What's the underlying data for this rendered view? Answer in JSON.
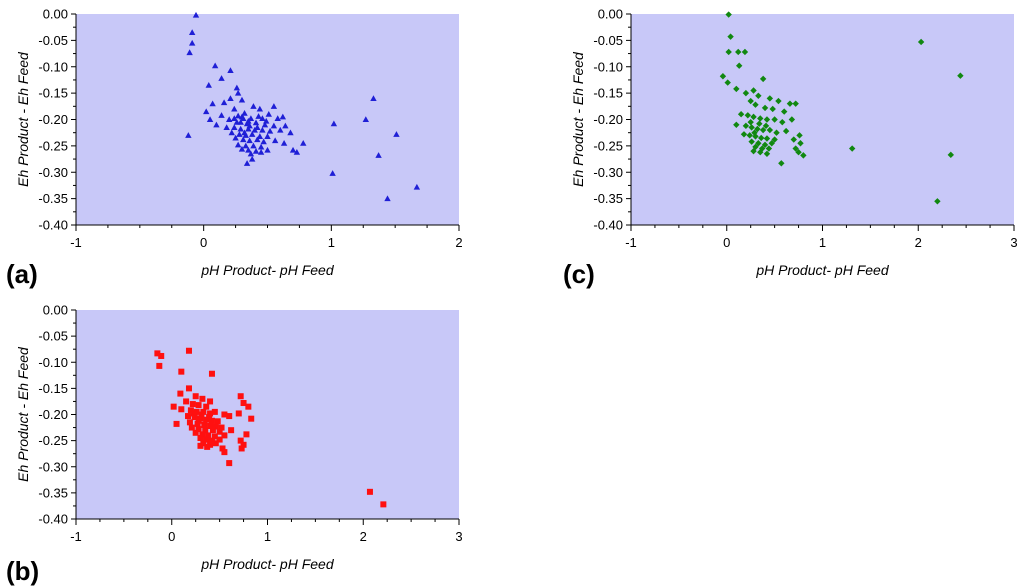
{
  "chart_data": [
    {
      "type": "scatter",
      "panel_label": "(a)",
      "xlabel": "pH Product- pH Feed",
      "ylabel": "Eh Product - Eh Feed",
      "xlim": [
        -1,
        2
      ],
      "ylim": [
        -0.4,
        0.0
      ],
      "xticks": [
        -1,
        0,
        1,
        2
      ],
      "xtick_labels": [
        "-1",
        "0",
        "1",
        "2"
      ],
      "yticks": [
        0,
        -0.05,
        -0.1,
        -0.15,
        -0.2,
        -0.25,
        -0.3,
        -0.35,
        -0.4
      ],
      "ytick_labels": [
        "0.00",
        "-0.05",
        "-0.10",
        "-0.15",
        "-0.20",
        "-0.25",
        "-0.30",
        "-0.35",
        "-0.40"
      ],
      "plot_background": "#c8c8f8",
      "marker": "triangle",
      "marker_color": "#1f1fd6",
      "series": [
        {
          "name": "Panel (a)",
          "points": [
            [
              -0.06,
              -0.002
            ],
            [
              -0.09,
              -0.035
            ],
            [
              -0.09,
              -0.055
            ],
            [
              -0.11,
              -0.073
            ],
            [
              0.09,
              -0.098
            ],
            [
              0.21,
              -0.107
            ],
            [
              0.14,
              -0.122
            ],
            [
              0.04,
              -0.135
            ],
            [
              0.26,
              -0.14
            ],
            [
              0.27,
              -0.15
            ],
            [
              0.21,
              -0.16
            ],
            [
              0.3,
              -0.163
            ],
            [
              0.16,
              -0.168
            ],
            [
              0.39,
              -0.175
            ],
            [
              0.44,
              -0.18
            ],
            [
              0.07,
              -0.17
            ],
            [
              0.24,
              -0.18
            ],
            [
              0.32,
              -0.188
            ],
            [
              0.55,
              -0.175
            ],
            [
              0.51,
              -0.19
            ],
            [
              0.02,
              -0.185
            ],
            [
              0.14,
              -0.192
            ],
            [
              0.3,
              -0.195
            ],
            [
              0.37,
              -0.198
            ],
            [
              0.43,
              -0.194
            ],
            [
              0.58,
              -0.198
            ],
            [
              0.62,
              -0.195
            ],
            [
              0.05,
              -0.2
            ],
            [
              0.2,
              -0.2
            ],
            [
              0.26,
              -0.205
            ],
            [
              0.34,
              -0.208
            ],
            [
              0.41,
              -0.206
            ],
            [
              0.48,
              -0.21
            ],
            [
              0.55,
              -0.212
            ],
            [
              0.64,
              -0.212
            ],
            [
              -0.12,
              -0.23
            ],
            [
              0.1,
              -0.21
            ],
            [
              0.18,
              -0.215
            ],
            [
              0.24,
              -0.215
            ],
            [
              0.29,
              -0.218
            ],
            [
              0.35,
              -0.218
            ],
            [
              0.4,
              -0.22
            ],
            [
              0.46,
              -0.22
            ],
            [
              0.52,
              -0.222
            ],
            [
              0.6,
              -0.22
            ],
            [
              0.68,
              -0.225
            ],
            [
              0.22,
              -0.225
            ],
            [
              0.28,
              -0.228
            ],
            [
              0.33,
              -0.23
            ],
            [
              0.38,
              -0.228
            ],
            [
              0.44,
              -0.232
            ],
            [
              0.5,
              -0.232
            ],
            [
              0.25,
              -0.235
            ],
            [
              0.31,
              -0.238
            ],
            [
              0.36,
              -0.24
            ],
            [
              0.42,
              -0.238
            ],
            [
              0.47,
              -0.242
            ],
            [
              0.56,
              -0.24
            ],
            [
              0.63,
              -0.245
            ],
            [
              0.78,
              -0.245
            ],
            [
              0.27,
              -0.248
            ],
            [
              0.33,
              -0.25
            ],
            [
              0.39,
              -0.25
            ],
            [
              0.45,
              -0.252
            ],
            [
              0.3,
              -0.256
            ],
            [
              0.35,
              -0.258
            ],
            [
              0.41,
              -0.26
            ],
            [
              0.5,
              -0.258
            ],
            [
              0.7,
              -0.258
            ],
            [
              0.73,
              -0.262
            ],
            [
              0.37,
              -0.265
            ],
            [
              0.45,
              -0.262
            ],
            [
              0.38,
              -0.275
            ],
            [
              0.34,
              -0.283
            ],
            [
              0.32,
              -0.225
            ],
            [
              0.36,
              -0.212
            ],
            [
              0.42,
              -0.215
            ],
            [
              0.29,
              -0.205
            ],
            [
              0.31,
              -0.198
            ],
            [
              0.27,
              -0.193
            ],
            [
              0.46,
              -0.198
            ],
            [
              0.49,
              -0.203
            ],
            [
              0.24,
              -0.198
            ],
            [
              0.35,
              -0.203
            ],
            [
              1.02,
              -0.208
            ],
            [
              1.27,
              -0.2
            ],
            [
              1.51,
              -0.228
            ],
            [
              1.37,
              -0.268
            ],
            [
              1.01,
              -0.302
            ],
            [
              1.44,
              -0.35
            ],
            [
              1.67,
              -0.328
            ],
            [
              1.33,
              -0.16
            ]
          ]
        }
      ]
    },
    {
      "type": "scatter",
      "panel_label": "(b)",
      "xlabel": "pH Product- pH Feed",
      "ylabel": "Eh Product - Eh Feed",
      "xlim": [
        -1,
        3
      ],
      "ylim": [
        -0.4,
        0.0
      ],
      "xticks": [
        -1,
        0,
        1,
        2,
        3
      ],
      "xtick_labels": [
        "-1",
        "0",
        "1",
        "2",
        "3"
      ],
      "yticks": [
        0,
        -0.05,
        -0.1,
        -0.15,
        -0.2,
        -0.25,
        -0.3,
        -0.35,
        -0.4
      ],
      "ytick_labels": [
        "0.00",
        "-0.05",
        "-0.10",
        "-0.15",
        "-0.20",
        "-0.25",
        "-0.30",
        "-0.35",
        "-0.40"
      ],
      "plot_background": "#c8c8f8",
      "marker": "square",
      "marker_color": "#ff1010",
      "series": [
        {
          "name": "Panel (b)",
          "points": [
            [
              -0.15,
              -0.083
            ],
            [
              -0.11,
              -0.088
            ],
            [
              -0.13,
              -0.107
            ],
            [
              0.18,
              -0.078
            ],
            [
              0.1,
              -0.118
            ],
            [
              0.42,
              -0.122
            ],
            [
              0.18,
              -0.15
            ],
            [
              0.25,
              -0.165
            ],
            [
              0.09,
              -0.16
            ],
            [
              0.32,
              -0.17
            ],
            [
              0.4,
              -0.175
            ],
            [
              0.15,
              -0.175
            ],
            [
              0.22,
              -0.18
            ],
            [
              0.28,
              -0.182
            ],
            [
              0.36,
              -0.185
            ],
            [
              0.72,
              -0.165
            ],
            [
              0.75,
              -0.178
            ],
            [
              0.8,
              -0.185
            ],
            [
              0.02,
              -0.185
            ],
            [
              0.1,
              -0.19
            ],
            [
              0.2,
              -0.192
            ],
            [
              0.26,
              -0.195
            ],
            [
              0.33,
              -0.195
            ],
            [
              0.4,
              -0.198
            ],
            [
              0.45,
              -0.195
            ],
            [
              0.55,
              -0.2
            ],
            [
              0.6,
              -0.203
            ],
            [
              0.7,
              -0.198
            ],
            [
              0.83,
              -0.208
            ],
            [
              0.17,
              -0.203
            ],
            [
              0.24,
              -0.205
            ],
            [
              0.3,
              -0.208
            ],
            [
              0.36,
              -0.21
            ],
            [
              0.42,
              -0.212
            ],
            [
              0.48,
              -0.213
            ],
            [
              0.05,
              -0.218
            ],
            [
              0.19,
              -0.215
            ],
            [
              0.27,
              -0.218
            ],
            [
              0.34,
              -0.22
            ],
            [
              0.4,
              -0.222
            ],
            [
              0.46,
              -0.223
            ],
            [
              0.52,
              -0.225
            ],
            [
              0.21,
              -0.225
            ],
            [
              0.28,
              -0.228
            ],
            [
              0.35,
              -0.23
            ],
            [
              0.43,
              -0.23
            ],
            [
              0.5,
              -0.233
            ],
            [
              0.62,
              -0.23
            ],
            [
              0.25,
              -0.235
            ],
            [
              0.32,
              -0.238
            ],
            [
              0.38,
              -0.24
            ],
            [
              0.45,
              -0.242
            ],
            [
              0.55,
              -0.24
            ],
            [
              0.78,
              -0.238
            ],
            [
              0.3,
              -0.245
            ],
            [
              0.36,
              -0.248
            ],
            [
              0.42,
              -0.25
            ],
            [
              0.5,
              -0.248
            ],
            [
              0.72,
              -0.25
            ],
            [
              0.33,
              -0.255
            ],
            [
              0.4,
              -0.258
            ],
            [
              0.46,
              -0.255
            ],
            [
              0.75,
              -0.258
            ],
            [
              0.3,
              -0.26
            ],
            [
              0.37,
              -0.262
            ],
            [
              0.53,
              -0.265
            ],
            [
              0.73,
              -0.265
            ],
            [
              0.55,
              -0.272
            ],
            [
              0.6,
              -0.293
            ],
            [
              0.28,
              -0.212
            ],
            [
              0.31,
              -0.2
            ],
            [
              0.39,
              -0.205
            ],
            [
              0.23,
              -0.198
            ],
            [
              2.07,
              -0.348
            ],
            [
              2.21,
              -0.372
            ]
          ]
        }
      ]
    },
    {
      "type": "scatter",
      "panel_label": "(c)",
      "xlabel": "pH Product- pH Feed",
      "ylabel": "Eh Product - Eh Feed",
      "xlim": [
        -1,
        3
      ],
      "ylim": [
        -0.4,
        0.0
      ],
      "xticks": [
        -1,
        0,
        1,
        2,
        3
      ],
      "xtick_labels": [
        "-1",
        "0",
        "1",
        "2",
        "3"
      ],
      "yticks": [
        0,
        -0.05,
        -0.1,
        -0.15,
        -0.2,
        -0.25,
        -0.3,
        -0.35,
        -0.4
      ],
      "ytick_labels": [
        "0.00",
        "-0.05",
        "-0.10",
        "-0.15",
        "-0.20",
        "-0.25",
        "-0.30",
        "-0.35",
        "-0.40"
      ],
      "plot_background": "#c8c8f8",
      "marker": "diamond",
      "marker_color": "#118811",
      "series": [
        {
          "name": "Panel (c)",
          "points": [
            [
              0.02,
              -0.001
            ],
            [
              0.04,
              -0.043
            ],
            [
              0.12,
              -0.072
            ],
            [
              0.19,
              -0.072
            ],
            [
              0.02,
              -0.072
            ],
            [
              0.13,
              -0.098
            ],
            [
              0.38,
              -0.123
            ],
            [
              -0.04,
              -0.118
            ],
            [
              0.01,
              -0.13
            ],
            [
              0.1,
              -0.142
            ],
            [
              0.28,
              -0.145
            ],
            [
              0.2,
              -0.15
            ],
            [
              0.33,
              -0.155
            ],
            [
              0.45,
              -0.16
            ],
            [
              0.54,
              -0.165
            ],
            [
              0.66,
              -0.17
            ],
            [
              0.72,
              -0.17
            ],
            [
              0.25,
              -0.165
            ],
            [
              0.3,
              -0.172
            ],
            [
              0.4,
              -0.178
            ],
            [
              0.48,
              -0.18
            ],
            [
              0.6,
              -0.185
            ],
            [
              0.15,
              -0.19
            ],
            [
              0.22,
              -0.192
            ],
            [
              0.28,
              -0.195
            ],
            [
              0.35,
              -0.198
            ],
            [
              0.42,
              -0.2
            ],
            [
              0.5,
              -0.2
            ],
            [
              0.58,
              -0.205
            ],
            [
              0.68,
              -0.2
            ],
            [
              0.1,
              -0.21
            ],
            [
              0.2,
              -0.212
            ],
            [
              0.26,
              -0.215
            ],
            [
              0.32,
              -0.218
            ],
            [
              0.38,
              -0.22
            ],
            [
              0.45,
              -0.22
            ],
            [
              0.52,
              -0.225
            ],
            [
              0.62,
              -0.222
            ],
            [
              0.76,
              -0.23
            ],
            [
              0.18,
              -0.228
            ],
            [
              0.24,
              -0.23
            ],
            [
              0.3,
              -0.232
            ],
            [
              0.36,
              -0.235
            ],
            [
              0.42,
              -0.236
            ],
            [
              0.5,
              -0.238
            ],
            [
              0.7,
              -0.238
            ],
            [
              0.26,
              -0.242
            ],
            [
              0.33,
              -0.245
            ],
            [
              0.4,
              -0.248
            ],
            [
              0.47,
              -0.245
            ],
            [
              0.77,
              -0.245
            ],
            [
              0.3,
              -0.252
            ],
            [
              0.37,
              -0.255
            ],
            [
              0.44,
              -0.255
            ],
            [
              0.72,
              -0.255
            ],
            [
              0.28,
              -0.26
            ],
            [
              0.35,
              -0.262
            ],
            [
              0.42,
              -0.265
            ],
            [
              0.75,
              -0.262
            ],
            [
              0.8,
              -0.268
            ],
            [
              0.57,
              -0.283
            ],
            [
              0.25,
              -0.205
            ],
            [
              0.34,
              -0.208
            ],
            [
              0.41,
              -0.212
            ],
            [
              0.29,
              -0.225
            ],
            [
              1.31,
              -0.255
            ],
            [
              2.03,
              -0.053
            ],
            [
              2.44,
              -0.117
            ],
            [
              2.34,
              -0.267
            ],
            [
              2.2,
              -0.355
            ]
          ]
        }
      ]
    }
  ]
}
